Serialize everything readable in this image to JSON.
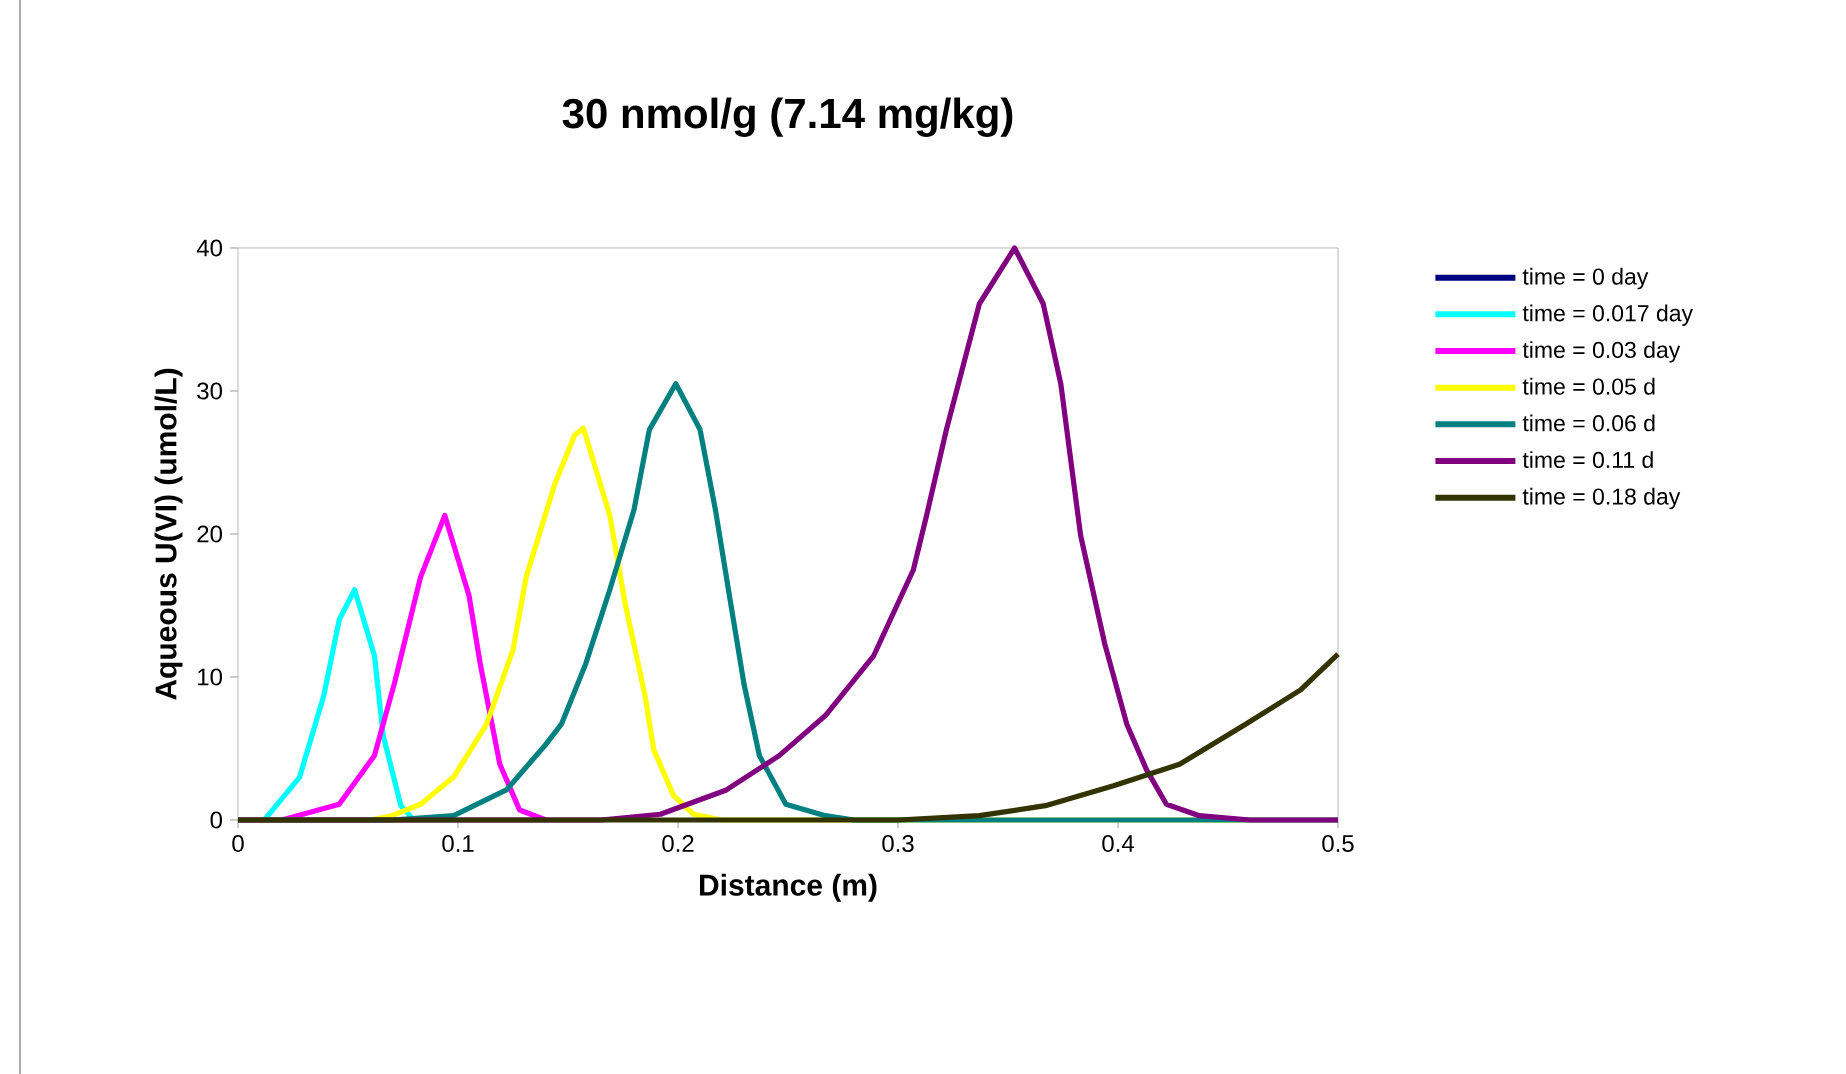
{
  "chart_data": {
    "type": "line",
    "title": "30 nmol/g (7.14 mg/kg)",
    "xlabel": "Distance (m)",
    "ylabel": "Aqueous U(VI) (umol/L)",
    "xlim": [
      0,
      0.5
    ],
    "ylim": [
      0,
      40
    ],
    "xticks": [
      0,
      0.1,
      0.2,
      0.3,
      0.4,
      0.5
    ],
    "yticks": [
      0,
      10,
      20,
      30,
      40
    ],
    "grid": false,
    "legend": "right",
    "marker": "none",
    "line_style": "solid",
    "series": [
      {
        "name": "time = 0 day",
        "color": "#000080"
      },
      {
        "name": "time = 0.017 day",
        "color": "#00ffff",
        "x": [
          0.012,
          0.028,
          0.039,
          0.046,
          0.053,
          0.062,
          0.066,
          0.074,
          0.08
        ],
        "values": [
          0,
          3,
          8.7,
          14,
          16.1,
          11.5,
          5.9,
          1,
          0
        ]
      },
      {
        "name": "time = 0.03 day",
        "color": "#ff00ff",
        "x": [
          0.02,
          0.046,
          0.062,
          0.071,
          0.083,
          0.094,
          0.105,
          0.11,
          0.119,
          0.128,
          0.14
        ],
        "values": [
          0,
          1.1,
          4.5,
          9.5,
          17,
          21.3,
          15.7,
          11,
          3.9,
          0.7,
          0
        ]
      },
      {
        "name": "time = 0.05 d",
        "color": "#ffff00",
        "x": [
          0,
          0.06,
          0.07,
          0.083,
          0.098,
          0.113,
          0.125,
          0.131,
          0.144,
          0.153,
          0.157,
          0.169,
          0.176,
          0.185,
          0.189,
          0.198,
          0.207,
          0.22,
          0.5
        ],
        "values": [
          0,
          0,
          0.3,
          1.1,
          3,
          6.7,
          11.9,
          17,
          23.5,
          26.9,
          27.4,
          21.3,
          15.1,
          8.7,
          4.9,
          1.7,
          0.4,
          0,
          0
        ]
      },
      {
        "name": "time = 0.06 d",
        "color": "#008080",
        "x": [
          0,
          0.07,
          0.098,
          0.122,
          0.14,
          0.147,
          0.158,
          0.169,
          0.18,
          0.187,
          0.199,
          0.21,
          0.217,
          0.224,
          0.23,
          0.237,
          0.249,
          0.267,
          0.28,
          0.5
        ],
        "values": [
          0,
          0,
          0.3,
          2.1,
          5.3,
          6.7,
          10.9,
          16.1,
          21.7,
          27.3,
          30.5,
          27.3,
          21.7,
          15.1,
          9.5,
          4.5,
          1.1,
          0.3,
          0,
          0
        ]
      },
      {
        "name": "time = 0.11 d",
        "color": "#800080",
        "x": [
          0,
          0.165,
          0.192,
          0.222,
          0.246,
          0.267,
          0.289,
          0.307,
          0.313,
          0.322,
          0.337,
          0.353,
          0.366,
          0.374,
          0.383,
          0.394,
          0.404,
          0.413,
          0.422,
          0.437,
          0.46,
          0.5
        ],
        "values": [
          0,
          0,
          0.4,
          2.1,
          4.5,
          7.3,
          11.5,
          17.5,
          21.3,
          27.3,
          36.1,
          40,
          36.1,
          30.5,
          19.9,
          12.3,
          6.7,
          3.5,
          1.1,
          0.3,
          0,
          0
        ]
      },
      {
        "name": "time = 0.18 day",
        "color": "#333300",
        "x": [
          0,
          0.3,
          0.337,
          0.367,
          0.398,
          0.428,
          0.458,
          0.483,
          0.5
        ],
        "values": [
          0,
          0,
          0.3,
          1,
          2.4,
          3.9,
          6.7,
          9.1,
          11.6
        ]
      }
    ]
  }
}
